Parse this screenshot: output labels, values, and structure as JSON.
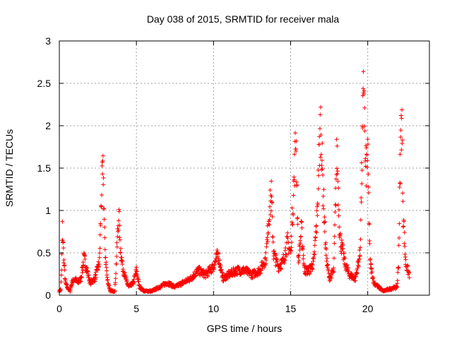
{
  "chart_data": {
    "type": "scatter",
    "title": "Day 038 of 2015, SRMTID for receiver mala",
    "xlabel": "GPS time / hours",
    "ylabel": "SRMTID / TECUs",
    "xlim": [
      0,
      24
    ],
    "ylim": [
      0,
      3
    ],
    "x_ticks": [
      0,
      5,
      10,
      15,
      20
    ],
    "x_tick_labels": [
      "0",
      "5",
      "10",
      "15",
      "20"
    ],
    "y_ticks": [
      0,
      0.5,
      1,
      1.5,
      2,
      2.5,
      3
    ],
    "y_tick_labels": [
      "0",
      "0.5",
      "1",
      "1.5",
      "2",
      "2.5",
      "3"
    ],
    "grid": true,
    "marker": "+",
    "series": [
      {
        "name": "SRMTID",
        "color": "#ff0000",
        "curve": [
          [
            0.0,
            0.05
          ],
          [
            0.1,
            0.07
          ],
          [
            0.15,
            0.3
          ],
          [
            0.2,
            0.8
          ],
          [
            0.3,
            0.4
          ],
          [
            0.4,
            0.15
          ],
          [
            0.5,
            0.1
          ],
          [
            0.7,
            0.05
          ],
          [
            0.8,
            0.15
          ],
          [
            1.0,
            0.2
          ],
          [
            1.2,
            0.15
          ],
          [
            1.4,
            0.2
          ],
          [
            1.6,
            0.45
          ],
          [
            1.8,
            0.3
          ],
          [
            2.0,
            0.15
          ],
          [
            2.3,
            0.2
          ],
          [
            2.6,
            0.4
          ],
          [
            2.75,
            1.3
          ],
          [
            2.85,
            1.5
          ],
          [
            2.95,
            0.6
          ],
          [
            3.1,
            0.2
          ],
          [
            3.3,
            0.05
          ],
          [
            3.6,
            0.05
          ],
          [
            3.75,
            0.6
          ],
          [
            3.85,
            1.0
          ],
          [
            3.95,
            0.6
          ],
          [
            4.1,
            0.35
          ],
          [
            4.3,
            0.2
          ],
          [
            4.5,
            0.1
          ],
          [
            4.8,
            0.15
          ],
          [
            5.0,
            0.3
          ],
          [
            5.2,
            0.1
          ],
          [
            5.5,
            0.05
          ],
          [
            6.0,
            0.05
          ],
          [
            6.5,
            0.1
          ],
          [
            7.0,
            0.15
          ],
          [
            7.5,
            0.1
          ],
          [
            8.0,
            0.15
          ],
          [
            8.5,
            0.2
          ],
          [
            9.0,
            0.3
          ],
          [
            9.5,
            0.25
          ],
          [
            10.0,
            0.35
          ],
          [
            10.3,
            0.5
          ],
          [
            10.6,
            0.2
          ],
          [
            11.0,
            0.25
          ],
          [
            11.5,
            0.3
          ],
          [
            12.0,
            0.3
          ],
          [
            12.5,
            0.25
          ],
          [
            13.0,
            0.3
          ],
          [
            13.4,
            0.45
          ],
          [
            13.6,
            1.0
          ],
          [
            13.75,
            1.2
          ],
          [
            13.9,
            0.5
          ],
          [
            14.2,
            0.35
          ],
          [
            14.5,
            0.4
          ],
          [
            14.8,
            0.65
          ],
          [
            15.0,
            0.5
          ],
          [
            15.2,
            1.3
          ],
          [
            15.35,
            1.95
          ],
          [
            15.5,
            0.4
          ],
          [
            15.7,
            0.8
          ],
          [
            15.9,
            0.3
          ],
          [
            16.2,
            0.3
          ],
          [
            16.5,
            0.4
          ],
          [
            16.7,
            0.9
          ],
          [
            16.85,
            1.7
          ],
          [
            16.95,
            2.1
          ],
          [
            17.1,
            1.3
          ],
          [
            17.3,
            0.5
          ],
          [
            17.5,
            0.2
          ],
          [
            17.8,
            0.3
          ],
          [
            18.0,
            1.75
          ],
          [
            18.2,
            0.7
          ],
          [
            18.5,
            0.4
          ],
          [
            18.8,
            0.25
          ],
          [
            19.2,
            0.2
          ],
          [
            19.5,
            0.5
          ],
          [
            19.65,
            1.8
          ],
          [
            19.75,
            2.67
          ],
          [
            19.85,
            1.5
          ],
          [
            20.0,
            1.7
          ],
          [
            20.15,
            0.4
          ],
          [
            20.4,
            0.15
          ],
          [
            20.7,
            0.1
          ],
          [
            21.0,
            0.05
          ],
          [
            21.5,
            0.08
          ],
          [
            21.9,
            0.1
          ],
          [
            22.0,
            0.4
          ],
          [
            22.1,
            1.5
          ],
          [
            22.2,
            2.27
          ],
          [
            22.3,
            1.0
          ],
          [
            22.45,
            0.4
          ],
          [
            22.6,
            0.3
          ],
          [
            22.7,
            0.25
          ]
        ]
      }
    ]
  }
}
